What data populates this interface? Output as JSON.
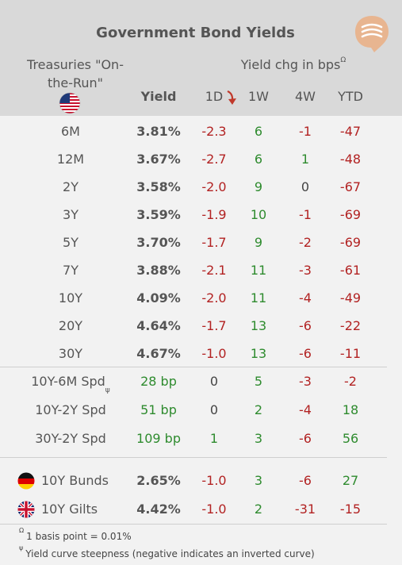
{
  "title": "Government Bond Yields",
  "treasuries_label": "Treasuries  \"On-the-Run\"",
  "yield_header": "Yield",
  "chg_header": "Yield chg in bps",
  "chg_header_sup": "Ω",
  "columns": [
    "1D",
    "1W",
    "4W",
    "YTD"
  ],
  "treasury_rows": [
    {
      "label": "6M",
      "yield": "3.81%",
      "d1": "-2.3",
      "w1": "6",
      "w4": "-1",
      "ytd": "-47"
    },
    {
      "label": "12M",
      "yield": "3.67%",
      "d1": "-2.7",
      "w1": "6",
      "w4": "1",
      "ytd": "-48"
    },
    {
      "label": "2Y",
      "yield": "3.58%",
      "d1": "-2.0",
      "w1": "9",
      "w4": "0",
      "ytd": "-67"
    },
    {
      "label": "3Y",
      "yield": "3.59%",
      "d1": "-1.9",
      "w1": "10",
      "w4": "-1",
      "ytd": "-69"
    },
    {
      "label": "5Y",
      "yield": "3.70%",
      "d1": "-1.7",
      "w1": "9",
      "w4": "-2",
      "ytd": "-69"
    },
    {
      "label": "7Y",
      "yield": "3.88%",
      "d1": "-2.1",
      "w1": "11",
      "w4": "-3",
      "ytd": "-61"
    },
    {
      "label": "10Y",
      "yield": "4.09%",
      "d1": "-2.0",
      "w1": "11",
      "w4": "-4",
      "ytd": "-49"
    },
    {
      "label": "20Y",
      "yield": "4.64%",
      "d1": "-1.7",
      "w1": "13",
      "w4": "-6",
      "ytd": "-22"
    },
    {
      "label": "30Y",
      "yield": "4.67%",
      "d1": "-1.0",
      "w1": "13",
      "w4": "-6",
      "ytd": "-11"
    }
  ],
  "spread_rows": [
    {
      "label": "10Y-6M Spd",
      "sup": "ψ",
      "yield": "28 bp",
      "d1": "0",
      "w1": "5",
      "w4": "-3",
      "ytd": "-2"
    },
    {
      "label": "10Y-2Y Spd",
      "sup": "",
      "yield": "51 bp",
      "d1": "0",
      "w1": "2",
      "w4": "-4",
      "ytd": "18"
    },
    {
      "label": "30Y-2Y Spd",
      "sup": "",
      "yield": "109 bp",
      "d1": "1",
      "w1": "3",
      "w4": "-6",
      "ytd": "56"
    }
  ],
  "intl_rows": [
    {
      "label": "10Y Bunds",
      "flag": "germany-flag-icon",
      "yield": "2.65%",
      "d1": "-1.0",
      "w1": "3",
      "w4": "-6",
      "ytd": "27"
    },
    {
      "label": "10Y Gilts",
      "flag": "uk-flag-icon",
      "yield": "4.42%",
      "d1": "-1.0",
      "w1": "2",
      "w4": "-31",
      "ytd": "-15"
    }
  ],
  "footnotes": [
    {
      "sym": "Ω",
      "text": "1 basis point = 0.01%"
    },
    {
      "sym": "ψ",
      "text": "Yield curve steepness (negative indicates an inverted curve)"
    }
  ],
  "colors": {
    "negative": "#b22222",
    "positive": "#2e8b2e",
    "header_bg": "#d9d9d9",
    "body_bg": "#f2f2f2",
    "accent": "#e8b590"
  }
}
